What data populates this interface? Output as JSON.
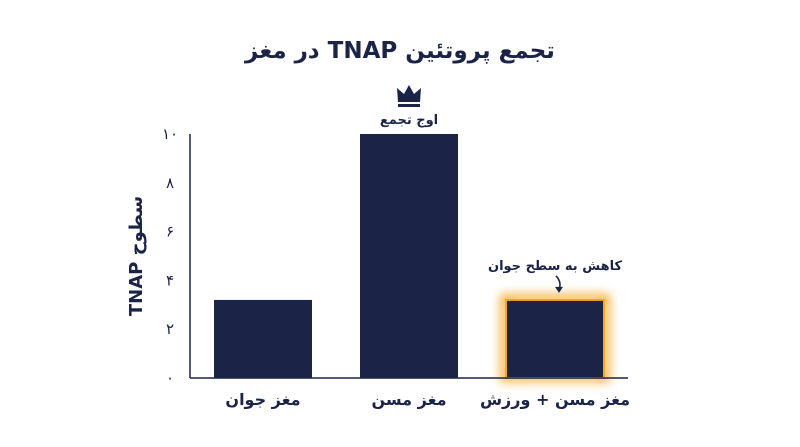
{
  "chart_data": {
    "type": "bar",
    "title": "تجمع پروتئین TNAP در مغز",
    "xlabel": "",
    "ylabel": "سطوح TNAP",
    "ylim": [
      0,
      10
    ],
    "yticks": [
      "۰",
      "۲",
      "۴",
      "۶",
      "۸",
      "۱۰"
    ],
    "tick_values": [
      0,
      2,
      4,
      6,
      8,
      10
    ],
    "categories": [
      "مغز جوان",
      "مغز مسن",
      "مغز مسن + ورزش"
    ],
    "values": [
      3.2,
      10,
      3.2
    ],
    "grid": false,
    "legend": "none",
    "bar_color": "#1b2447",
    "highlight_color": "#f5a623",
    "highlight_index": 2,
    "annotations": [
      {
        "bar_index": 1,
        "text": "اوج تجمع",
        "icon": "crown-icon"
      },
      {
        "bar_index": 2,
        "text": "کاهش به سطح جوان",
        "icon": "arrow-down-icon"
      }
    ]
  }
}
